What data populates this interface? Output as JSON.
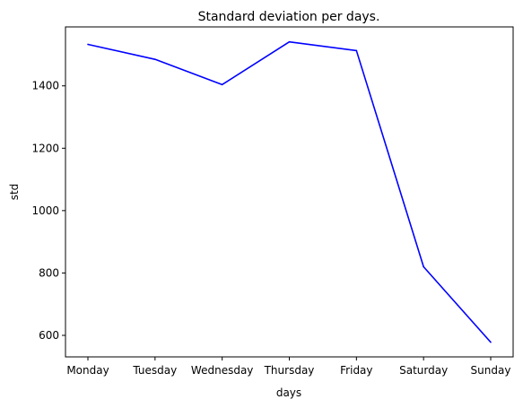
{
  "chart_data": {
    "type": "line",
    "title": "Standard deviation per days.",
    "xlabel": "days",
    "ylabel": "std",
    "categories": [
      "Monday",
      "Tuesday",
      "Wednesday",
      "Thursday",
      "Friday",
      "Saturday",
      "Sunday"
    ],
    "series": [
      {
        "color": "#0000ff",
        "values": [
          1533,
          1485,
          1404,
          1541,
          1513,
          820,
          578
        ]
      }
    ],
    "yticks": [
      600,
      800,
      1000,
      1200,
      1400
    ],
    "ylim": [
      531,
      1589
    ],
    "grid": false
  }
}
